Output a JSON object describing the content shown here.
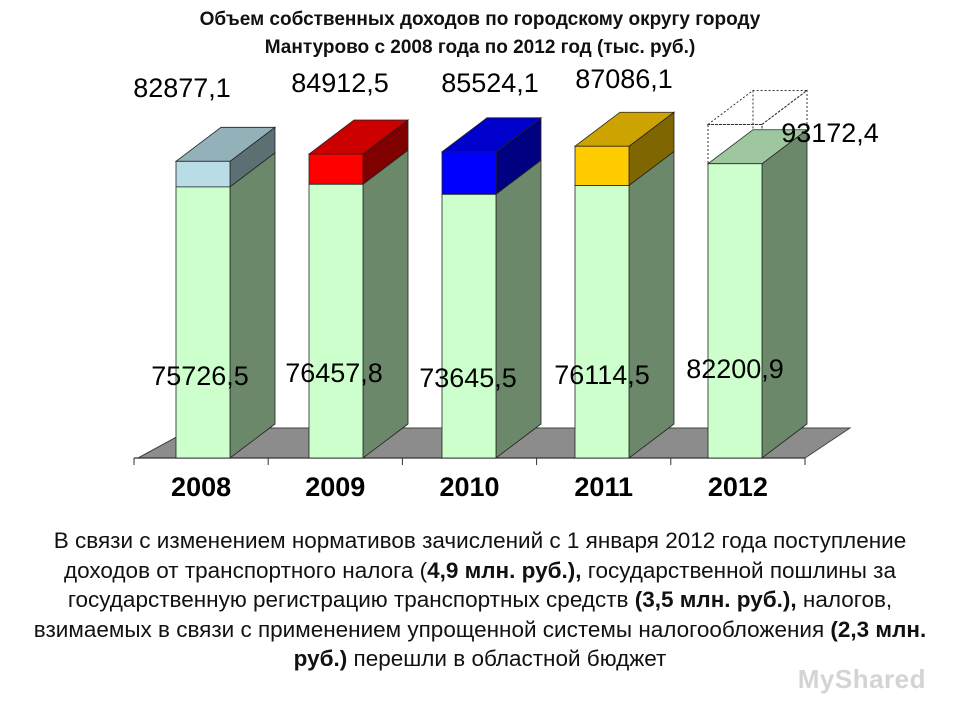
{
  "chart_data": {
    "type": "bar",
    "title_line1": "Объем собственных доходов по городскому округу городу",
    "title_line2": "Мантурово с 2008 года по 2012 год (тыс. руб.)",
    "categories": [
      "2008",
      "2009",
      "2010",
      "2011",
      "2012"
    ],
    "series": [
      {
        "values": [
          75726.5,
          76457.8,
          73645.5,
          76114.5,
          82200.9
        ],
        "labels": [
          "75726,5",
          "76457,8",
          "73645,5",
          "76114,5",
          "82200,9"
        ],
        "color": "#ccffcc"
      },
      {
        "values": [
          82877.1,
          84912.5,
          85524.1,
          87086.1,
          93172.4
        ],
        "labels": [
          "82877,1",
          "84912,5",
          "85524,1",
          "87086,1",
          "93172,4"
        ],
        "colors": [
          "#b8dde6",
          "#ff0000",
          "#0000ff",
          "#ffcc00",
          "#ffffff"
        ]
      }
    ],
    "stacked": true,
    "three_d": true,
    "grid": false,
    "legend": "none"
  },
  "caption": {
    "t1": "В связи с изменением нормативов зачислений с 1 января 2012 года поступление доходов от транспортного налога (",
    "b1": "4,9 млн. руб.),",
    "t2": " государственной пошлины за государственную регистрацию транспортных средств ",
    "b2": "(3,5 млн. руб.),",
    "t3": " налогов, взимаемых в связи с применением упрощенной системы налогообложения ",
    "b3": "(2,3 млн. руб.)",
    "t4": " перешли в областной бюджет"
  },
  "watermark": "MyShared"
}
